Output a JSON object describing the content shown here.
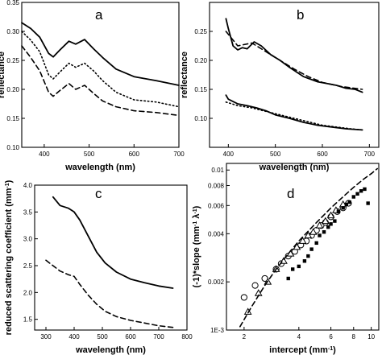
{
  "chart_data": [
    {
      "panel": "a",
      "type": "line",
      "xlabel": "wavelength (nm)",
      "ylabel": "reflectance",
      "xlim": [
        350,
        700
      ],
      "ylim": [
        0.1,
        0.35
      ],
      "xticks": [
        400,
        500,
        600,
        700
      ],
      "yticks": [
        0.1,
        0.15,
        0.2,
        0.25,
        0.3,
        0.35
      ],
      "ytick_labels": [
        "0.10",
        "0.15",
        "0.20",
        "0.25",
        "0.30",
        "0.35"
      ],
      "series": [
        {
          "style": "solid",
          "x": [
            350,
            370,
            390,
            410,
            420,
            435,
            455,
            470,
            490,
            510,
            530,
            560,
            600,
            650,
            700
          ],
          "y": [
            0.315,
            0.305,
            0.29,
            0.262,
            0.256,
            0.268,
            0.283,
            0.278,
            0.286,
            0.27,
            0.255,
            0.235,
            0.222,
            0.215,
            0.207
          ]
        },
        {
          "style": "dotted",
          "x": [
            350,
            370,
            390,
            410,
            420,
            435,
            455,
            470,
            490,
            510,
            530,
            560,
            600,
            650,
            700
          ],
          "y": [
            0.3,
            0.285,
            0.265,
            0.225,
            0.218,
            0.23,
            0.245,
            0.238,
            0.245,
            0.232,
            0.215,
            0.195,
            0.182,
            0.178,
            0.17
          ]
        },
        {
          "style": "dashed",
          "x": [
            350,
            370,
            390,
            410,
            420,
            435,
            455,
            470,
            490,
            510,
            530,
            560,
            600,
            650,
            700
          ],
          "y": [
            0.275,
            0.255,
            0.232,
            0.195,
            0.188,
            0.198,
            0.21,
            0.2,
            0.207,
            0.193,
            0.18,
            0.17,
            0.163,
            0.16,
            0.155
          ]
        }
      ]
    },
    {
      "panel": "b",
      "type": "line",
      "xlabel": "wavelength (nm)",
      "ylabel": "reflectance",
      "xlim": [
        360,
        720
      ],
      "ylim": [
        0.05,
        0.3
      ],
      "xticks": [
        400,
        500,
        600,
        700
      ],
      "yticks": [
        0.1,
        0.15,
        0.2,
        0.25
      ],
      "ytick_labels": [
        "0.10",
        "0.15",
        "0.20",
        "0.25"
      ],
      "series": [
        {
          "style": "solid",
          "x": [
            395,
            400,
            410,
            420,
            430,
            440,
            455,
            470,
            490,
            510,
            530,
            560,
            590,
            610,
            630,
            650,
            670,
            685
          ],
          "y": [
            0.272,
            0.255,
            0.225,
            0.218,
            0.222,
            0.22,
            0.232,
            0.225,
            0.21,
            0.2,
            0.188,
            0.172,
            0.163,
            0.16,
            0.157,
            0.152,
            0.15,
            0.145
          ]
        },
        {
          "style": "dashed",
          "x": [
            395,
            420,
            450,
            480,
            510,
            540,
            570,
            600,
            640,
            685
          ],
          "y": [
            0.25,
            0.225,
            0.23,
            0.215,
            0.2,
            0.185,
            0.172,
            0.162,
            0.155,
            0.15
          ]
        },
        {
          "style": "solid",
          "x": [
            395,
            400,
            420,
            440,
            460,
            480,
            500,
            530,
            560,
            590,
            620,
            650,
            685
          ],
          "y": [
            0.14,
            0.133,
            0.125,
            0.122,
            0.118,
            0.113,
            0.106,
            0.1,
            0.093,
            0.088,
            0.085,
            0.082,
            0.08
          ]
        },
        {
          "style": "dotted",
          "x": [
            395,
            420,
            450,
            480,
            510,
            540,
            570,
            600,
            630,
            660,
            685
          ],
          "y": [
            0.128,
            0.122,
            0.118,
            0.112,
            0.106,
            0.1,
            0.094,
            0.088,
            0.085,
            0.082,
            0.08
          ]
        }
      ]
    },
    {
      "panel": "c",
      "type": "line",
      "xlabel": "wavelength (nm)",
      "ylabel": "reduced scattering coefficient (mm",
      "ylabel_sup": "-1",
      "ylabel_end": ")",
      "xlim": [
        260,
        800
      ],
      "ylim": [
        1.3,
        4.0
      ],
      "xticks": [
        300,
        400,
        500,
        600,
        700,
        800
      ],
      "yticks": [
        1.5,
        2.0,
        2.5,
        3.0,
        3.5,
        4.0
      ],
      "ytick_labels": [
        "1.5",
        "2.0",
        "2.5",
        "3.0",
        "3.5",
        "4.0"
      ],
      "series": [
        {
          "style": "solid",
          "x": [
            325,
            350,
            380,
            400,
            420,
            450,
            480,
            510,
            550,
            600,
            650,
            700,
            750
          ],
          "y": [
            3.78,
            3.62,
            3.57,
            3.5,
            3.35,
            3.05,
            2.75,
            2.55,
            2.38,
            2.25,
            2.18,
            2.12,
            2.08
          ]
        },
        {
          "style": "dashed",
          "x": [
            300,
            320,
            350,
            380,
            400,
            420,
            450,
            480,
            510,
            550,
            600,
            650,
            700,
            750
          ],
          "y": [
            2.6,
            2.52,
            2.4,
            2.33,
            2.3,
            2.15,
            1.95,
            1.78,
            1.65,
            1.55,
            1.48,
            1.43,
            1.38,
            1.35
          ]
        }
      ]
    },
    {
      "panel": "d",
      "type": "scatter",
      "scale": "log-log",
      "xlabel": "intercept (mm",
      "xlabel_sup": "-1",
      "xlabel_end": ")",
      "ylabel": "(-1)*slope (mm",
      "ylabel_sup": "-1",
      "ylabel_mid": " λ",
      "ylabel_sup2": "-1",
      "ylabel_end": ")",
      "xlim": [
        1.6,
        11
      ],
      "ylim": [
        0.001,
        0.011
      ],
      "xticks": [
        2,
        4,
        6,
        8,
        10
      ],
      "xtick_labels": [
        "2",
        "4",
        "6",
        "8",
        "10"
      ],
      "yticks": [
        0.001,
        0.002,
        0.004,
        0.006,
        0.008,
        0.01
      ],
      "ytick_labels": [
        "1E-3",
        "0.002",
        "0.004",
        "0.006",
        "0.008",
        "0.01"
      ],
      "series": [
        {
          "marker": "circle",
          "x": [
            2.0,
            2.3,
            2.6,
            3.0,
            3.2,
            3.5,
            3.8,
            4.1,
            4.4,
            4.7,
            5.0,
            5.3,
            5.6,
            6.0,
            6.5,
            7.0,
            7.5
          ],
          "y": [
            0.0016,
            0.0019,
            0.0021,
            0.0024,
            0.0026,
            0.0029,
            0.0031,
            0.0034,
            0.0036,
            0.0039,
            0.0042,
            0.0045,
            0.0047,
            0.0051,
            0.0055,
            0.0058,
            0.0062
          ]
        },
        {
          "marker": "triangle",
          "x": [
            2.1,
            2.4,
            2.7,
            3.0,
            3.3,
            3.6,
            3.9,
            4.2,
            4.5,
            4.8,
            5.2,
            5.6,
            6.0,
            6.4,
            7.0
          ],
          "y": [
            0.0013,
            0.0017,
            0.002,
            0.0024,
            0.0027,
            0.003,
            0.0033,
            0.0036,
            0.0039,
            0.0041,
            0.0045,
            0.0048,
            0.0052,
            0.0056,
            0.0061
          ]
        },
        {
          "marker": "square",
          "x": [
            3.5,
            3.7,
            4.0,
            4.3,
            4.5,
            4.7,
            5.0,
            5.2,
            5.5,
            5.8,
            6.0,
            6.3,
            6.6,
            7.0,
            7.3,
            7.6,
            8.0,
            8.4,
            8.8,
            9.2,
            9.6
          ],
          "y": [
            0.0021,
            0.0024,
            0.0025,
            0.0027,
            0.0029,
            0.0032,
            0.0035,
            0.0039,
            0.0041,
            0.0044,
            0.0046,
            0.0048,
            0.0055,
            0.0058,
            0.0061,
            0.0063,
            0.0068,
            0.0071,
            0.0074,
            0.0076,
            0.0062
          ]
        },
        {
          "marker": "line-dashed",
          "x": [
            1.9,
            2.2,
            2.6,
            3.0,
            3.5,
            4.0,
            5.0,
            6.0,
            7.0,
            8.0,
            9.0,
            10.0,
            10.8
          ],
          "y": [
            0.00105,
            0.0014,
            0.0019,
            0.0024,
            0.003,
            0.0036,
            0.0047,
            0.0058,
            0.0068,
            0.0078,
            0.0087,
            0.0095,
            0.0102
          ]
        }
      ]
    }
  ]
}
